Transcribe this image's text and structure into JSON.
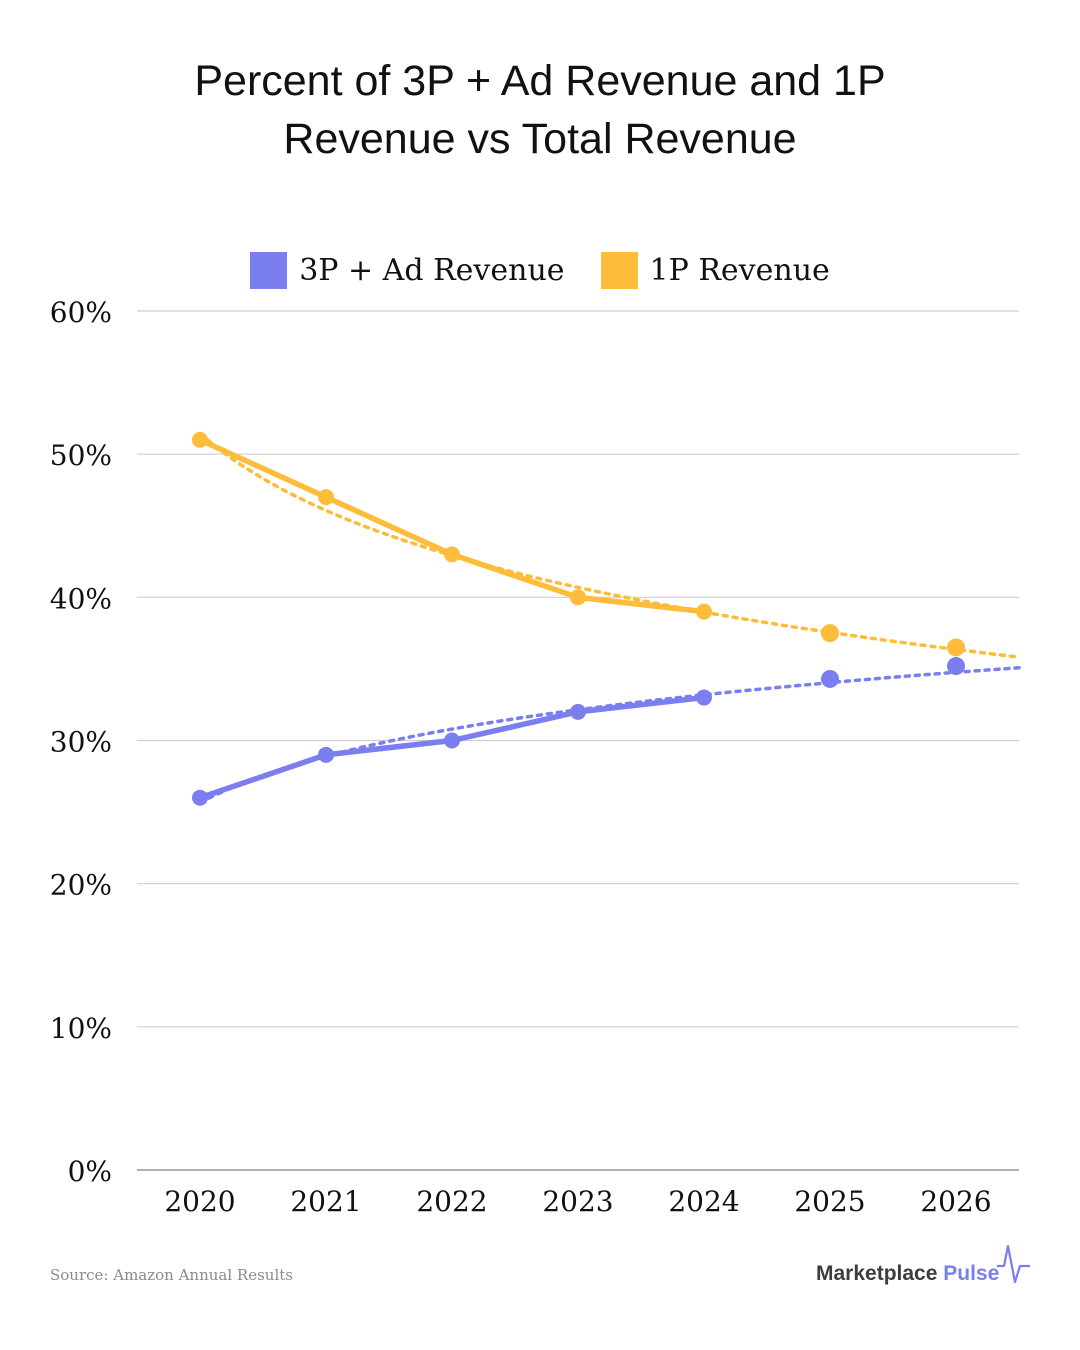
{
  "title_lines": [
    "Percent of 3P + Ad Revenue and 1P",
    "Revenue vs Total Revenue"
  ],
  "source": "Source: Amazon Annual Results",
  "brand": {
    "first": "Marketplace",
    "second": "Pulse",
    "icon": "pulse-line-icon"
  },
  "colors": {
    "series_3p": "#7a7eee",
    "series_1p": "#fdbd3a",
    "grid": "#cfcfcf",
    "axis": "#999999",
    "brand_accent": "#7a7eee"
  },
  "chart_data": {
    "type": "line",
    "title": "Percent of 3P + Ad Revenue and 1P Revenue vs Total Revenue",
    "x": [
      "2020",
      "2021",
      "2022",
      "2023",
      "2024",
      "2025",
      "2026"
    ],
    "ylim": [
      0,
      60
    ],
    "yticks": [
      "0%",
      "10%",
      "20%",
      "30%",
      "40%",
      "50%",
      "60%"
    ],
    "ytick_values": [
      0,
      10,
      20,
      30,
      40,
      50,
      60
    ],
    "grid": true,
    "legend": "top-center",
    "series": [
      {
        "name": "3P + Ad Revenue",
        "color": "#7a7eee",
        "actual": [
          26,
          29,
          30,
          32,
          33,
          null,
          null
        ],
        "projected": [
          null,
          null,
          null,
          null,
          null,
          34.3,
          35.2
        ],
        "trendline": "dotted"
      },
      {
        "name": "1P Revenue",
        "color": "#fdbd3a",
        "actual": [
          51,
          47,
          43,
          40,
          39,
          null,
          null
        ],
        "projected": [
          null,
          null,
          null,
          null,
          null,
          37.5,
          36.5
        ],
        "trendline": "dotted"
      }
    ]
  }
}
